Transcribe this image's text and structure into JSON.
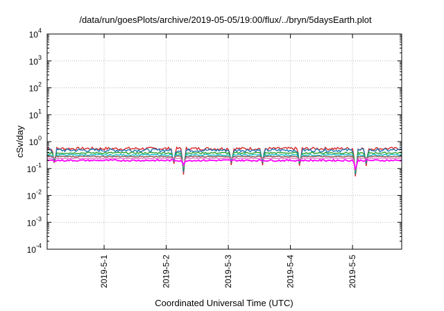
{
  "chart_data": {
    "type": "line",
    "title": "/data/run/goesPlots/archive/2019-05-05/19:00/flux/../bryn/5daysEarth.plot",
    "xlabel": "Coordinated Universal Time (UTC)",
    "ylabel": "cSv/day",
    "yscale": "log",
    "ylim": [
      0.0001,
      10000
    ],
    "xlim_days": [
      "2019-04-30 02:00",
      "2019-05-05 19:00"
    ],
    "grid": true,
    "y_ticks": [
      {
        "base": "10",
        "exp": "-4"
      },
      {
        "base": "10",
        "exp": "-3"
      },
      {
        "base": "10",
        "exp": "-2"
      },
      {
        "base": "10",
        "exp": "-1"
      },
      {
        "base": "10",
        "exp": "0"
      },
      {
        "base": "10",
        "exp": "1"
      },
      {
        "base": "10",
        "exp": "2"
      },
      {
        "base": "10",
        "exp": "3"
      },
      {
        "base": "10",
        "exp": "4"
      }
    ],
    "x_ticks": [
      "2019-5-1",
      "2019-5-2",
      "2019-5-3",
      "2019-5-4",
      "2019-5-5"
    ],
    "series": [
      {
        "color": "#d62728",
        "base": 0.55,
        "amp": 0.18
      },
      {
        "color": "#1f77b4",
        "base": 0.48,
        "amp": 0.2
      },
      {
        "color": "#2ca02c",
        "base": 0.38,
        "amp": 0.1
      },
      {
        "color": "#17becf",
        "base": 0.32,
        "amp": 0.08
      },
      {
        "color": "#8c564b",
        "base": 0.28,
        "amp": 0.06
      },
      {
        "color": "#e377c2",
        "base": 0.24,
        "amp": 0.05
      },
      {
        "color": "#ff00ff",
        "base": 0.2,
        "amp": 0.1
      }
    ],
    "dips": [
      {
        "day": 0.2,
        "value": 0.12
      },
      {
        "day": 2.12,
        "value": 0.12
      },
      {
        "day": 2.28,
        "value": 0.055
      },
      {
        "day": 3.05,
        "value": 0.12
      },
      {
        "day": 3.55,
        "value": 0.12
      },
      {
        "day": 4.15,
        "value": 0.1
      },
      {
        "day": 5.05,
        "value": 0.035
      },
      {
        "day": 5.22,
        "value": 0.12
      }
    ]
  }
}
